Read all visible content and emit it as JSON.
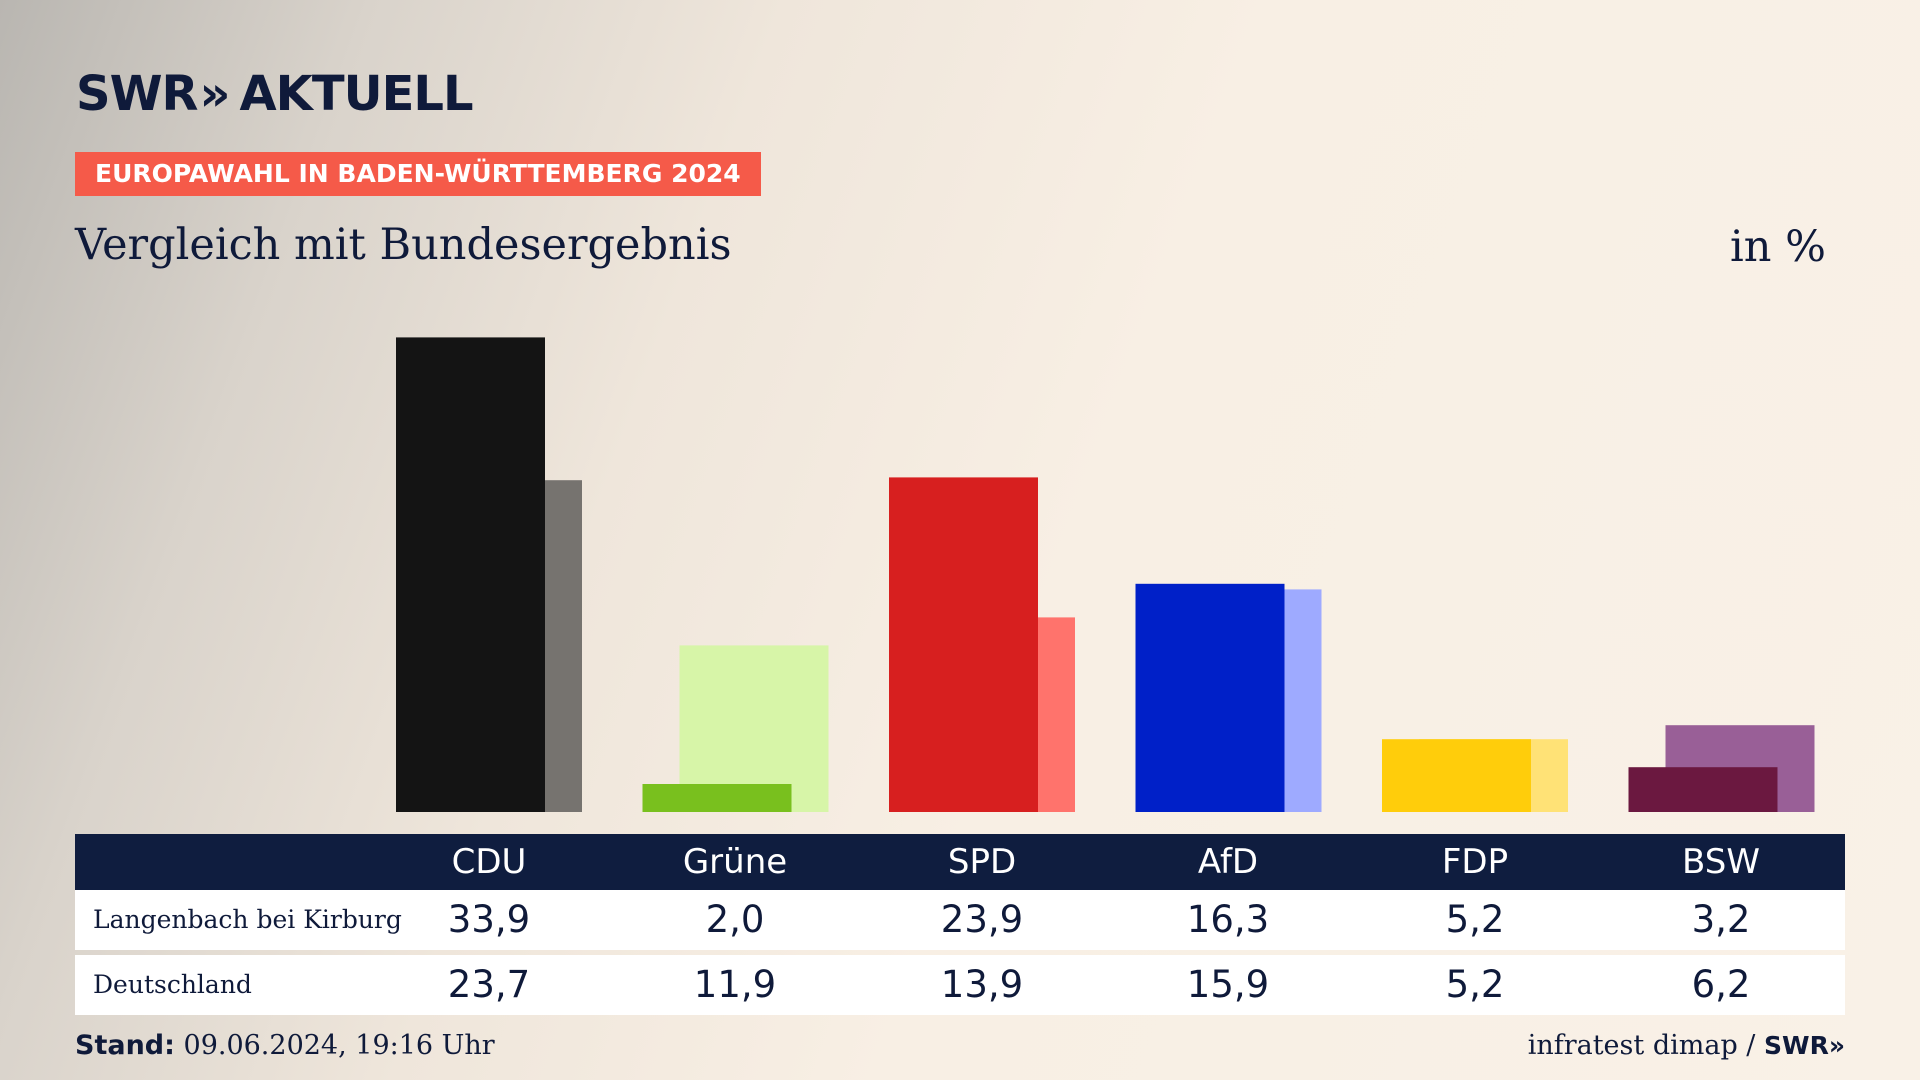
{
  "header": {
    "logo_text_1": "SWR",
    "logo_chevrons": "»",
    "logo_text_2": "AKTUELL",
    "banner": "EUROPAWAHL IN BADEN-WÜRTTEMBERG 2024",
    "subtitle": "Vergleich mit Bundesergebnis",
    "unit": "in %"
  },
  "colors": {
    "banner": "#f55a49",
    "navy": "#0f1d3f"
  },
  "chart_data": {
    "type": "bar",
    "categories": [
      "CDU",
      "Grüne",
      "SPD",
      "AfD",
      "FDP",
      "BSW"
    ],
    "series": [
      {
        "name": "Langenbach bei Kirburg",
        "values": [
          33.9,
          2.0,
          23.9,
          16.3,
          5.2,
          3.2
        ],
        "colors": [
          "#141414",
          "#79c01e",
          "#d71f1f",
          "#0020c8",
          "#ffcd0b",
          "#6b1840"
        ]
      },
      {
        "name": "Deutschland",
        "values": [
          23.7,
          11.9,
          13.9,
          15.9,
          5.2,
          6.2
        ],
        "colors": [
          "#76736f",
          "#d7f5a8",
          "#ff736c",
          "#9eaaff",
          "#ffe276",
          "#995f97"
        ]
      }
    ],
    "ylim": [
      0,
      34
    ],
    "grid": false,
    "legend": "none"
  },
  "table": {
    "headers": [
      "CDU",
      "Grüne",
      "SPD",
      "AfD",
      "FDP",
      "BSW"
    ],
    "rows": [
      {
        "label": "Langenbach bei Kirburg",
        "values": [
          "33,9",
          "2,0",
          "23,9",
          "16,3",
          "5,2",
          "3,2"
        ]
      },
      {
        "label": "Deutschland",
        "values": [
          "23,7",
          "11,9",
          "13,9",
          "15,9",
          "5,2",
          "6,2"
        ]
      }
    ]
  },
  "footer": {
    "stand_label": "Stand:",
    "stand_value": "09.06.2024, 19:16 Uhr",
    "source": "infratest dimap /",
    "source_logo": "SWR»"
  }
}
